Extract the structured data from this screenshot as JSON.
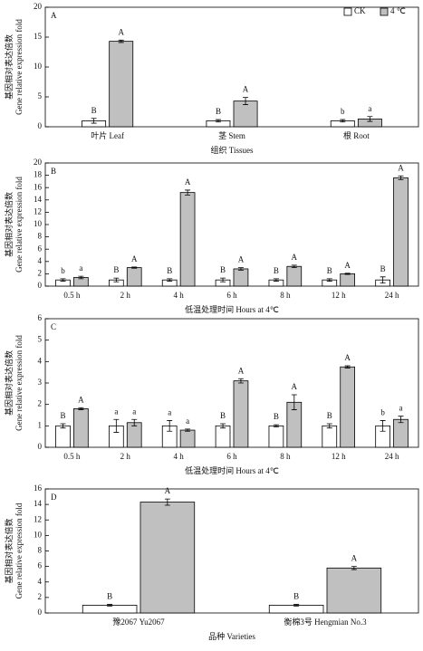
{
  "chart_data": [
    {
      "type": "bar",
      "panel": "A",
      "ylabel_cn": "基因相对表达倍数",
      "ylabel_en": "Gene relative expression fold",
      "xlabel": "组织 Tissues",
      "categories": [
        "叶片 Leaf",
        "茎 Stem",
        "根 Root"
      ],
      "ylim": [
        0,
        20
      ],
      "yticks": [
        0,
        5,
        10,
        15,
        20
      ],
      "series": [
        {
          "name": "CK",
          "color": "#ffffff",
          "values": [
            1,
            1,
            1
          ],
          "errors": [
            0.4,
            0.2,
            0.2
          ],
          "letters": [
            "B",
            "B",
            "b"
          ]
        },
        {
          "name": "4 ℃",
          "color": "#c0c0c0",
          "values": [
            14.3,
            4.3,
            1.3
          ],
          "errors": [
            0.2,
            0.6,
            0.4
          ],
          "letters": [
            "A",
            "A",
            "a"
          ]
        }
      ]
    },
    {
      "type": "bar",
      "panel": "B",
      "ylabel_cn": "基因相对表达倍数",
      "ylabel_en": "Gene relative expression fold",
      "xlabel": "低温处理时间 Hours at 4℃",
      "categories": [
        "0.5 h",
        "2 h",
        "4 h",
        "6 h",
        "8 h",
        "12 h",
        "24 h"
      ],
      "ylim": [
        0,
        20
      ],
      "yticks": [
        0,
        2,
        4,
        6,
        8,
        10,
        12,
        14,
        16,
        18,
        20
      ],
      "series": [
        {
          "color": "#ffffff",
          "values": [
            1,
            1,
            1,
            1,
            1,
            1,
            1
          ],
          "errors": [
            0.2,
            0.3,
            0.2,
            0.3,
            0.2,
            0.2,
            0.5
          ],
          "letters": [
            "b",
            "B",
            "B",
            "B",
            "B",
            "B",
            "B"
          ]
        },
        {
          "color": "#c0c0c0",
          "values": [
            1.4,
            3.0,
            15.2,
            2.8,
            3.2,
            2.0,
            17.6
          ],
          "errors": [
            0.2,
            0.1,
            0.4,
            0.2,
            0.2,
            0.1,
            0.3
          ],
          "letters": [
            "a",
            "A",
            "A",
            "A",
            "A",
            "A",
            "A"
          ]
        }
      ]
    },
    {
      "type": "bar",
      "panel": "C",
      "ylabel_cn": "基因相对表达倍数",
      "ylabel_en": "Gene relative expression fold",
      "xlabel": "低温处理时间 Hours at 4℃",
      "categories": [
        "0.5 h",
        "2 h",
        "4 h",
        "6 h",
        "8 h",
        "12 h",
        "24 h"
      ],
      "ylim": [
        0,
        6
      ],
      "yticks": [
        0,
        1,
        2,
        3,
        4,
        5,
        6
      ],
      "series": [
        {
          "color": "#ffffff",
          "values": [
            1,
            1,
            1,
            1,
            1,
            1,
            1
          ],
          "errors": [
            0.1,
            0.3,
            0.25,
            0.1,
            0.05,
            0.1,
            0.25
          ],
          "letters": [
            "B",
            "a",
            "a",
            "B",
            "B",
            "B",
            "b"
          ]
        },
        {
          "color": "#c0c0c0",
          "values": [
            1.8,
            1.15,
            0.8,
            3.1,
            2.1,
            3.75,
            1.3
          ],
          "errors": [
            0.05,
            0.15,
            0.05,
            0.1,
            0.35,
            0.05,
            0.15
          ],
          "letters": [
            "A",
            "a",
            "a",
            "A",
            "A",
            "A",
            "a"
          ]
        }
      ]
    },
    {
      "type": "bar",
      "panel": "D",
      "ylabel_cn": "基因相对表达倍数",
      "ylabel_en": "Gene relative expression fold",
      "xlabel": "品种 Varieties",
      "categories": [
        "豫2067 Yu2067",
        "衡棉3号 Hengmian No.3"
      ],
      "ylim": [
        0,
        16
      ],
      "yticks": [
        0,
        2,
        4,
        6,
        8,
        10,
        12,
        14,
        16
      ],
      "series": [
        {
          "color": "#ffffff",
          "values": [
            1,
            1
          ],
          "errors": [
            0.1,
            0.1
          ],
          "letters": [
            "B",
            "B"
          ]
        },
        {
          "color": "#c0c0c0",
          "values": [
            14.3,
            5.8
          ],
          "errors": [
            0.4,
            0.2
          ],
          "letters": [
            "A",
            "A"
          ]
        }
      ]
    }
  ]
}
